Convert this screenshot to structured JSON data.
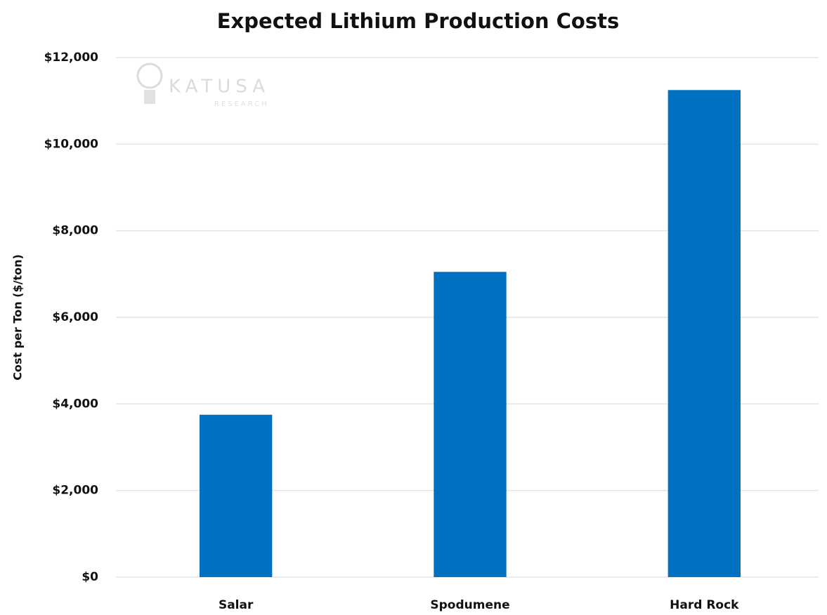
{
  "chart_data": {
    "type": "bar",
    "title": "Expected Lithium Production Costs",
    "y_label": "Cost per Ton ($/ton)",
    "watermark": {
      "name": "KATUSA",
      "sub": "RESEARCH"
    },
    "categories": [
      "Salar",
      "Spodumene",
      "Hard Rock"
    ],
    "values": [
      3750,
      7050,
      11250
    ],
    "color": "#0070c0",
    "ylim": [
      0,
      12000
    ],
    "yticks": [
      {
        "value": 0,
        "label": "$0"
      },
      {
        "value": 2000,
        "label": "$2,000"
      },
      {
        "value": 4000,
        "label": "$4,000"
      },
      {
        "value": 6000,
        "label": "$6,000"
      },
      {
        "value": 8000,
        "label": "$8,000"
      },
      {
        "value": 10000,
        "label": "$10,000"
      },
      {
        "value": 12000,
        "label": "$12,000"
      }
    ],
    "grid": true
  }
}
